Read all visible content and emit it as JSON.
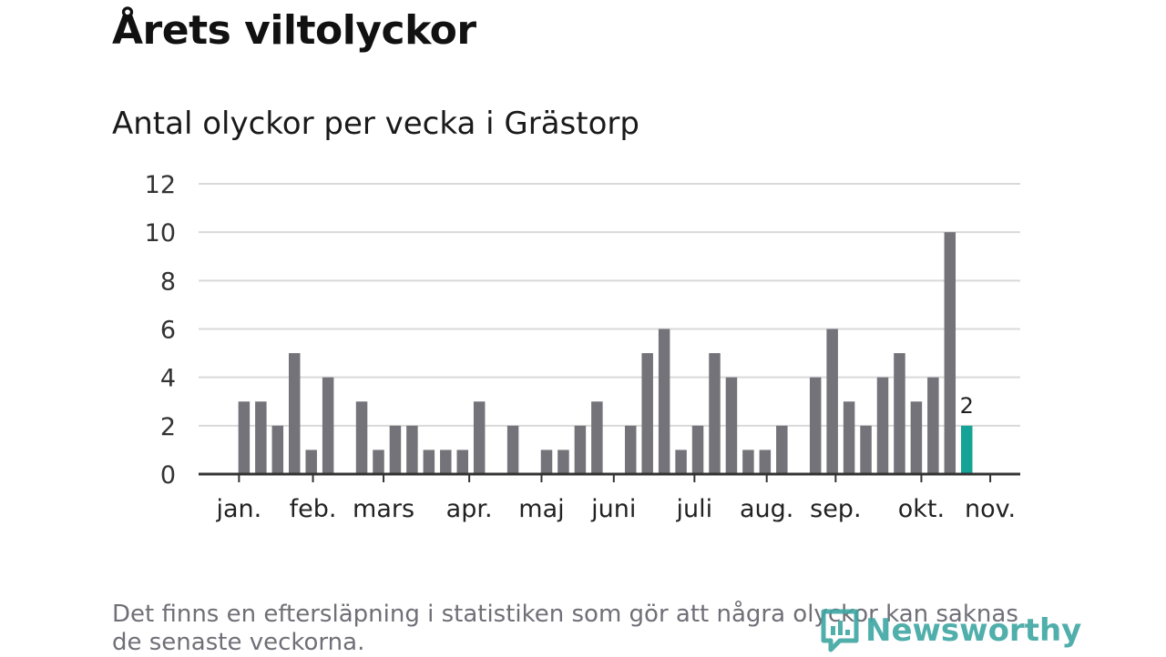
{
  "header": {
    "title": "Årets viltolyckor",
    "subtitle": "Antal olyckor per vecka i Grästorp"
  },
  "footnote": "Det finns en eftersläpning i statistiken som gör att några olyckor kan saknas de senaste veckorna.",
  "logo": {
    "text": "Newsworthy",
    "icon": "newsworthy-logo-icon"
  },
  "colors": {
    "bar": "#75737a",
    "highlight": "#14a396",
    "grid": "#d9d9d9",
    "axis": "#333333"
  },
  "chart_data": {
    "type": "bar",
    "title": "Antal olyckor per vecka i Grästorp",
    "xlabel": "",
    "ylabel": "",
    "ylim": [
      0,
      12
    ],
    "yticks": [
      0,
      2,
      4,
      6,
      8,
      10,
      12
    ],
    "grid": true,
    "weeks": [
      1,
      2,
      3,
      4,
      5,
      6,
      7,
      8,
      9,
      10,
      11,
      12,
      13,
      14,
      15,
      16,
      17,
      18,
      19,
      20,
      21,
      22,
      23,
      24,
      25,
      26,
      27,
      28,
      29,
      30,
      31,
      32,
      33,
      34,
      35,
      36,
      37,
      38,
      39,
      40,
      41,
      42,
      43,
      44,
      45,
      46
    ],
    "values": [
      0,
      0,
      3,
      3,
      2,
      5,
      1,
      4,
      0,
      3,
      1,
      2,
      2,
      1,
      1,
      1,
      3,
      0,
      2,
      0,
      1,
      1,
      2,
      3,
      0,
      2,
      5,
      6,
      1,
      2,
      5,
      4,
      1,
      1,
      2,
      0,
      4,
      6,
      3,
      2,
      4,
      5,
      3,
      4,
      10,
      2
    ],
    "highlight_index": 45,
    "highlight_label": "2",
    "month_ticks": [
      {
        "label": "jan.",
        "week": 2.7
      },
      {
        "label": "feb.",
        "week": 7.1
      },
      {
        "label": "mars",
        "week": 11.3
      },
      {
        "label": "apr.",
        "week": 16.4
      },
      {
        "label": "maj",
        "week": 20.7
      },
      {
        "label": "juni",
        "week": 25.0
      },
      {
        "label": "juli",
        "week": 29.8
      },
      {
        "label": "aug.",
        "week": 34.1
      },
      {
        "label": "sep.",
        "week": 38.2
      },
      {
        "label": "okt.",
        "week": 43.3
      },
      {
        "label": "nov.",
        "week": 47.4
      }
    ]
  }
}
